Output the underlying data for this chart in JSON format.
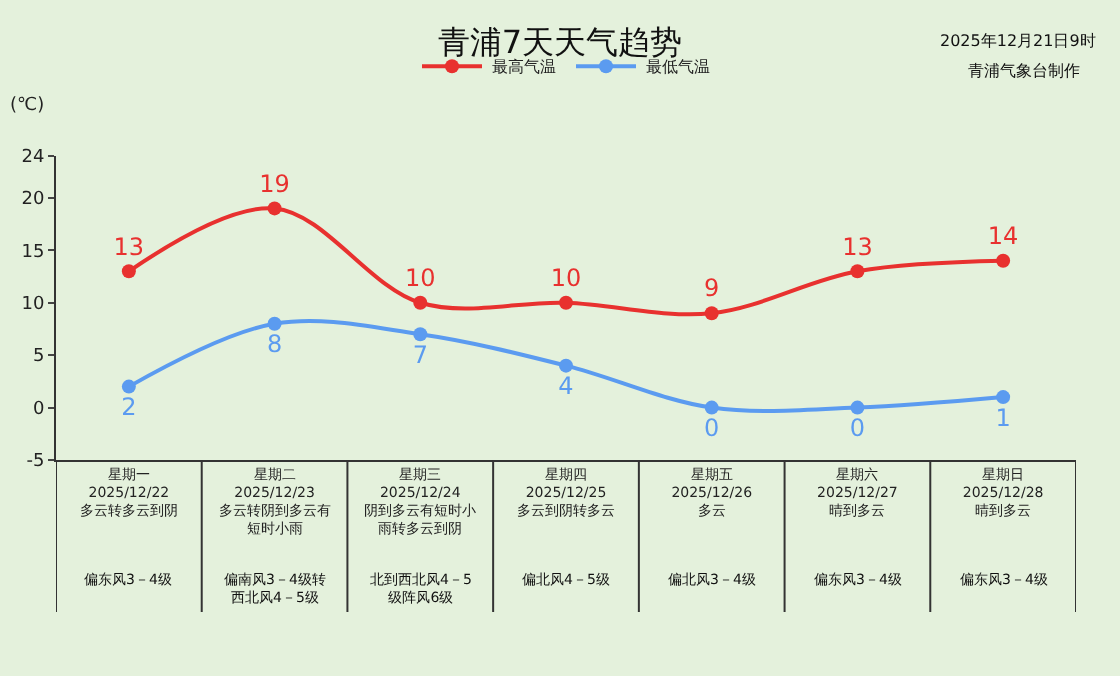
{
  "chart_data": {
    "type": "line",
    "title": "青浦7天天气趋势",
    "ylabel": "(℃)",
    "categories": [
      "星期一\n2025/12/22\n多云转多云到阴",
      "星期二\n2025/12/23\n多云转阴到多云有短时小雨",
      "星期三\n2025/12/24\n阴到多云有短时小雨转多云到阴",
      "星期四\n2025/12/25\n多云到阴转多云",
      "星期五\n2025/12/26\n多云",
      "星期六\n2025/12/27\n晴到多云",
      "星期日\n2025/12/28\n晴到多云"
    ],
    "series": [
      {
        "name": "最高气温",
        "color": "#e8312f",
        "values": [
          13,
          19,
          10,
          10,
          9,
          13,
          14
        ]
      },
      {
        "name": "最低气温",
        "color": "#5b9bf0",
        "values": [
          2,
          8,
          7,
          4,
          0,
          0,
          1
        ]
      }
    ],
    "ylim": [
      -5,
      24
    ],
    "yticks": [
      -5,
      0,
      5,
      10,
      15,
      20,
      24
    ],
    "data_labels": true,
    "grid": false,
    "legend": "top",
    "marker": "circle",
    "annotations": [
      "2025年12月21日9时",
      "青浦气象台制作",
      "偏东风3－4级",
      "偏南风3－4级转西北风4－5级",
      "北到西北风4－5级阵风6级",
      "偏北风4－5级",
      "偏北风3－4级",
      "偏东风3－4级",
      "偏东风3－4级"
    ]
  }
}
